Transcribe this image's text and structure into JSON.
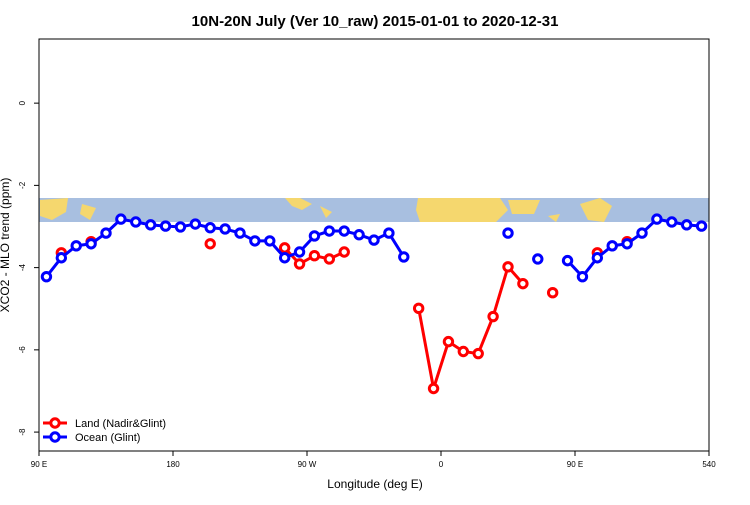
{
  "chart_data": {
    "type": "line",
    "title": "10N-20N July (Ver 10_raw)   2015-01-01 to 2020-12-31",
    "x_label": "Longitude (deg E)",
    "y_label": "XCO2 - MLO trend (ppm)",
    "x": [
      95,
      105,
      115,
      125,
      135,
      145,
      155,
      165,
      175,
      185,
      195,
      205,
      215,
      225,
      235,
      245,
      255,
      265,
      275,
      285,
      295,
      305,
      315,
      325,
      335,
      345,
      355,
      365,
      375,
      385,
      395,
      405,
      415,
      425,
      435,
      445,
      455,
      465,
      475,
      485,
      495,
      505,
      515,
      525,
      535
    ],
    "series": [
      {
        "name": "Land (Nadir&Glint)",
        "color": "#ff0000",
        "values": [
          null,
          -3.64,
          null,
          -3.37,
          null,
          null,
          null,
          null,
          null,
          null,
          null,
          -3.42,
          null,
          null,
          null,
          null,
          -3.52,
          -3.91,
          -3.71,
          -3.79,
          -3.62,
          null,
          null,
          null,
          null,
          -4.99,
          -6.94,
          -5.8,
          -6.04,
          -6.09,
          -5.19,
          -3.98,
          -4.39,
          null,
          -4.61,
          null,
          null,
          -3.64,
          null,
          -3.37,
          null,
          null,
          null,
          null,
          null
        ]
      },
      {
        "name": "Ocean (Glint)",
        "color": "#0000ff",
        "values": [
          -4.22,
          -3.76,
          -3.47,
          -3.42,
          -3.16,
          -2.82,
          -2.89,
          -2.96,
          -2.99,
          -3.01,
          -2.94,
          -3.03,
          -3.06,
          -3.16,
          -3.35,
          -3.35,
          -3.76,
          -3.62,
          -3.23,
          -3.11,
          -3.11,
          -3.2,
          -3.33,
          -3.16,
          -3.74,
          null,
          null,
          null,
          null,
          null,
          null,
          -3.16,
          null,
          -3.79,
          null,
          -3.83,
          -4.22,
          -3.76,
          -3.47,
          -3.42,
          -3.16,
          -2.82,
          -2.89,
          -2.96,
          -2.99
        ]
      }
    ],
    "xlim": [
      90,
      540
    ],
    "xticks": [
      {
        "value": 90,
        "label": "90 E"
      },
      180,
      {
        "value": 270,
        "label": "90 W"
      },
      {
        "value": 360,
        "label": "0"
      },
      {
        "value": 450,
        "label": "90 E"
      },
      540
    ],
    "ylim": [
      -8.46,
      1.56
    ],
    "yticks": [
      0,
      -2,
      -4,
      -6,
      -8
    ],
    "legend": "bottom-left"
  }
}
